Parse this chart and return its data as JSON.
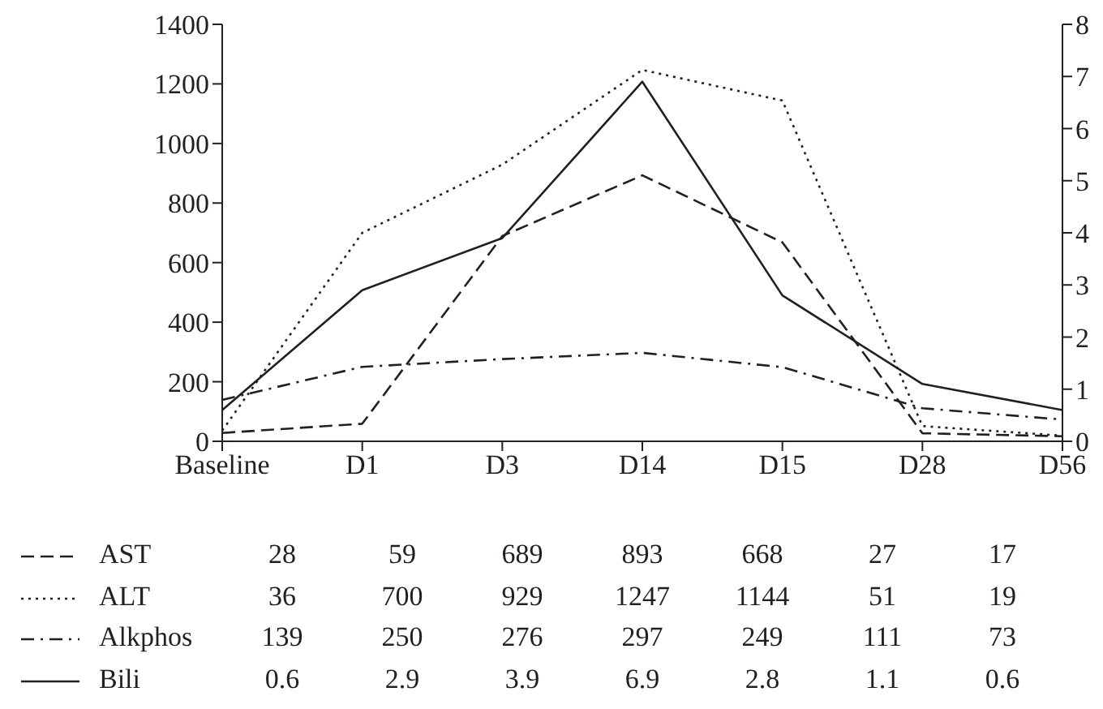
{
  "chart_data": {
    "type": "line",
    "categories": [
      "Baseline",
      "D1",
      "D3",
      "D14",
      "D15",
      "D28",
      "D56"
    ],
    "series": [
      {
        "name": "AST",
        "color": "#231f20",
        "line_style": "dashed",
        "values": [
          28,
          59,
          689,
          893,
          668,
          27,
          17
        ]
      },
      {
        "name": "ALT",
        "color": "#231f20",
        "line_style": "dotted",
        "values": [
          36,
          700,
          929,
          1247,
          1144,
          51,
          19
        ]
      },
      {
        "name": "Alkphos",
        "color": "#231f20",
        "line_style": "dashdot",
        "values": [
          139,
          250,
          276,
          297,
          249,
          111,
          73
        ]
      },
      {
        "name": "Bili",
        "color": "#231f20",
        "line_style": "solid",
        "axis": "y2",
        "values": [
          0.6,
          2.9,
          3.9,
          6.9,
          2.8,
          1.1,
          0.6
        ]
      }
    ],
    "ylim": [
      0,
      1400
    ],
    "yticks": [
      0,
      200,
      400,
      600,
      800,
      1000,
      1200,
      1400
    ],
    "y2lim": [
      0,
      8
    ],
    "y2ticks": [
      0,
      1,
      2,
      3,
      4,
      5,
      6,
      7,
      8
    ],
    "data_labels": true,
    "legend": "bottom"
  }
}
